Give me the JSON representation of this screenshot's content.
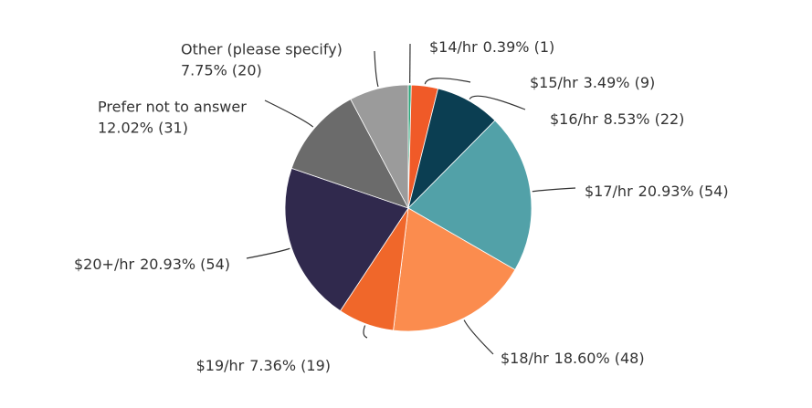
{
  "chart_data": {
    "type": "pie",
    "categories": [
      "$14/hr",
      "$15/hr",
      "$16/hr",
      "$17/hr",
      "$18/hr",
      "$19/hr",
      "$20+/hr",
      "Prefer not to answer",
      "Other (please specify)"
    ],
    "values": [
      0.39,
      3.49,
      8.53,
      20.93,
      18.6,
      7.36,
      20.93,
      12.02,
      7.75
    ],
    "value_labels": [
      "0.39% (1)",
      "3.49% (9)",
      "8.53% (22)",
      "20.93% (54)",
      "18.60% (48)",
      "7.36% (19)",
      "20.93% (54)",
      "12.02% (31)",
      "7.75% (20)"
    ],
    "colors": [
      "#2aa67a",
      "#f05a28",
      "#0b3e52",
      "#52a1a8",
      "#fb8c4e",
      "#f0672a",
      "#30294d",
      "#6b6b6b",
      "#9b9b9b"
    ]
  }
}
